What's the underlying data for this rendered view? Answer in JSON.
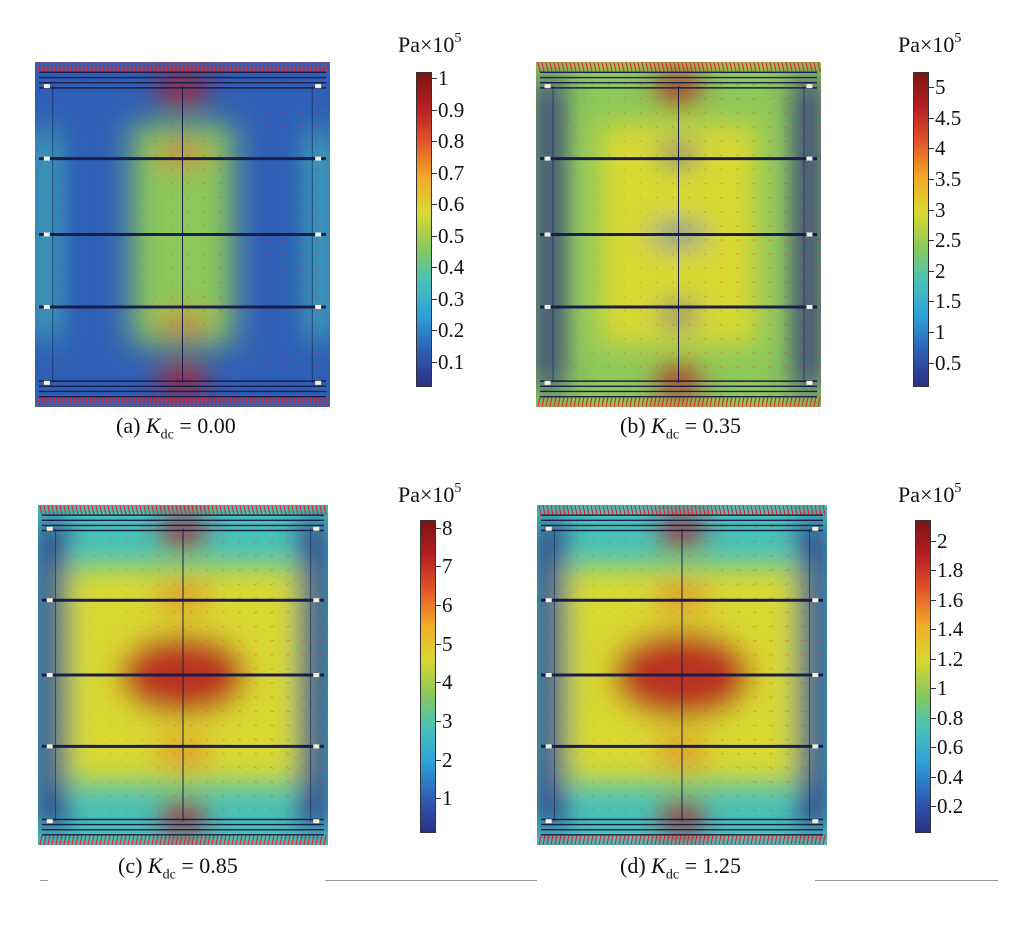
{
  "panels": [
    {
      "caption": {
        "label": "(a)",
        "symbol": "K",
        "subscript": "dc",
        "equals": "=",
        "value": "0.00"
      },
      "unit": {
        "base": "Pa×10",
        "exponent": "5"
      },
      "ticks": [
        "1",
        "0.9",
        "0.8",
        "0.7",
        "0.6",
        "0.5",
        "0.4",
        "0.3",
        "0.2",
        "0.1"
      ],
      "tick_values": [
        1,
        0.9,
        0.8,
        0.7,
        0.6,
        0.5,
        0.4,
        0.3,
        0.2,
        0.1
      ],
      "range": [
        0.02,
        1.02
      ]
    },
    {
      "caption": {
        "label": "(b)",
        "symbol": "K",
        "subscript": "dc",
        "equals": "=",
        "value": "0.35"
      },
      "unit": {
        "base": "Pa×10",
        "exponent": "5"
      },
      "ticks": [
        "5",
        "4.5",
        "4",
        "3.5",
        "3",
        "2.5",
        "2",
        "1.5",
        "1",
        "0.5"
      ],
      "tick_values": [
        5,
        4.5,
        4,
        3.5,
        3,
        2.5,
        2,
        1.5,
        1,
        0.5
      ],
      "range": [
        0.1,
        5.25
      ]
    },
    {
      "caption": {
        "label": "(c)",
        "symbol": "K",
        "subscript": "dc",
        "equals": "=",
        "value": "0.85"
      },
      "unit": {
        "base": "Pa×10",
        "exponent": "5"
      },
      "ticks": [
        "8",
        "7",
        "6",
        "5",
        "4",
        "3",
        "2",
        "1"
      ],
      "tick_values": [
        8,
        7,
        6,
        5,
        4,
        3,
        2,
        1
      ],
      "range": [
        0.1,
        8.2
      ]
    },
    {
      "caption": {
        "label": "(d)",
        "symbol": "K",
        "subscript": "dc",
        "equals": "=",
        "value": "1.25"
      },
      "unit": {
        "base": "Pa×10",
        "exponent": "5"
      },
      "ticks": [
        "2",
        "1.8",
        "1.6",
        "1.4",
        "1.2",
        "1",
        "0.8",
        "0.6",
        "0.4",
        "0.2"
      ],
      "tick_values": [
        2,
        1.8,
        1.6,
        1.4,
        1.2,
        1,
        0.8,
        0.6,
        0.4,
        0.2
      ],
      "range": [
        0.02,
        2.14
      ]
    }
  ],
  "colors": {
    "colormap": [
      "#2b2f86",
      "#2e5fb5",
      "#2f9fd8",
      "#47c1b8",
      "#8cc85a",
      "#d9d932",
      "#f2a928",
      "#e3562a",
      "#b61f22",
      "#7c1414"
    ],
    "plate_line": "#1b1e4a",
    "arrows": "#e8282a",
    "rule": "#9a9a9a"
  }
}
